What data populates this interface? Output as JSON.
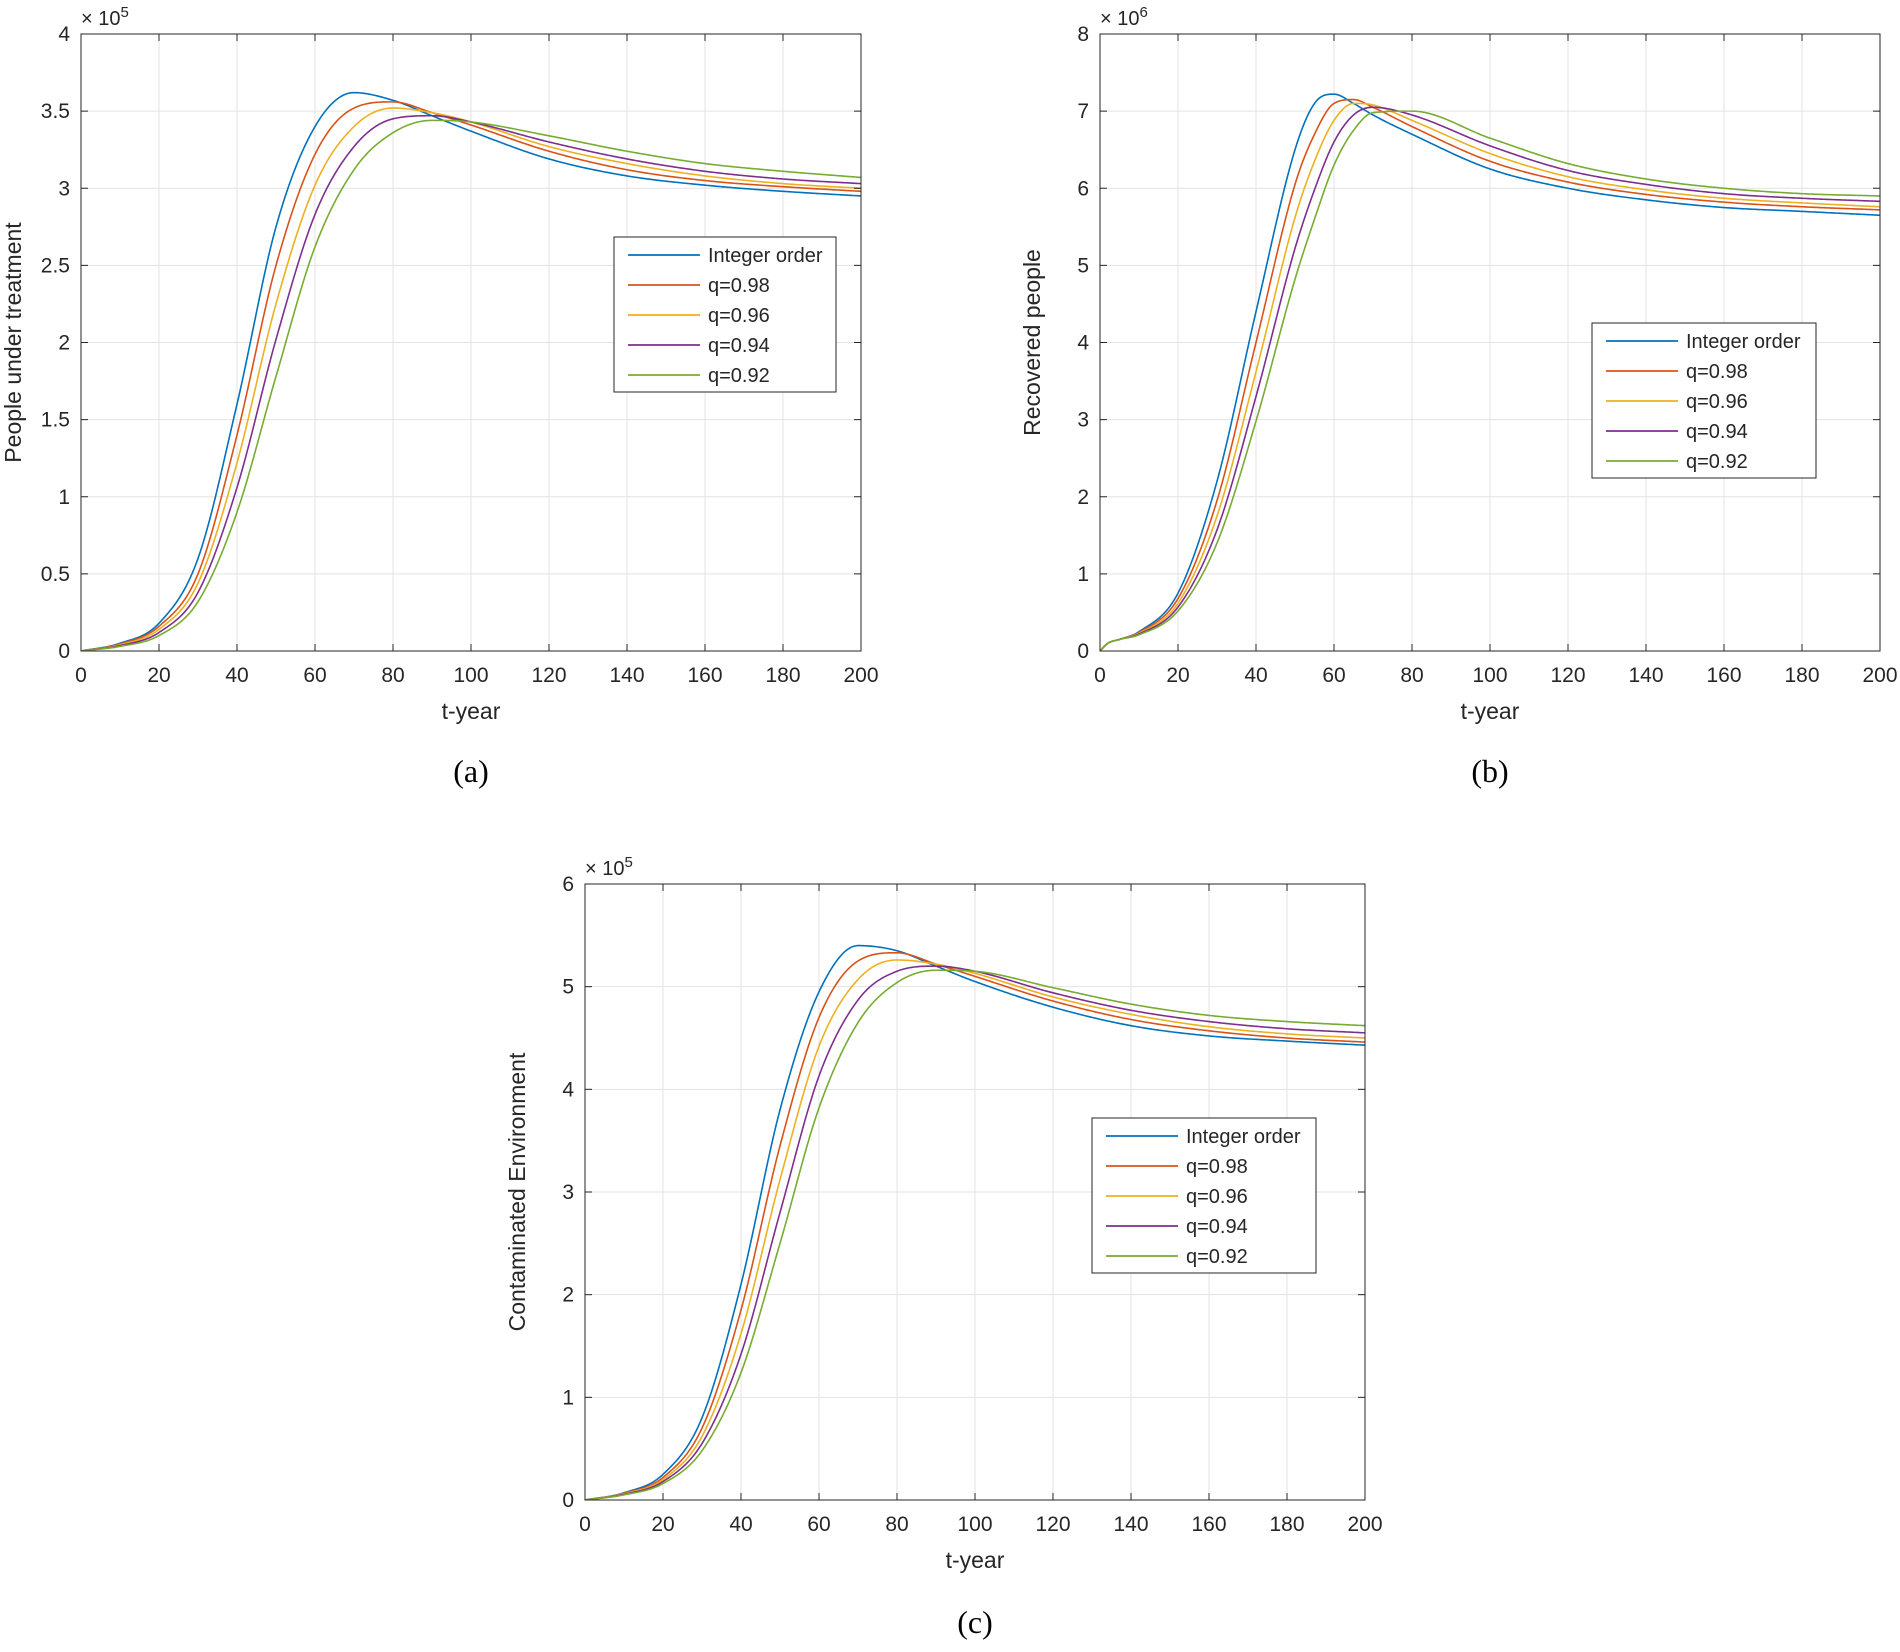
{
  "chart_data": [
    {
      "id": "a",
      "type": "line",
      "caption": "(a)",
      "title": "",
      "xlabel": "t-year",
      "ylabel": "People under treatment",
      "exponent": "5",
      "exponent_prefix": "× 10",
      "xlim": [
        0,
        200
      ],
      "ylim": [
        0,
        4
      ],
      "xticks": [
        0,
        20,
        40,
        60,
        80,
        100,
        120,
        140,
        160,
        180,
        200
      ],
      "yticks": [
        0,
        0.5,
        1,
        1.5,
        2,
        2.5,
        3,
        3.5,
        4
      ],
      "grid": true,
      "legend_position": "right-upper",
      "x": [
        0,
        10,
        20,
        30,
        40,
        50,
        60,
        70,
        80,
        90,
        100,
        120,
        140,
        160,
        180,
        200
      ],
      "series": [
        {
          "name": "Integer order",
          "color": "#0072BD",
          "values": [
            0,
            0.05,
            0.18,
            0.6,
            1.6,
            2.75,
            3.4,
            3.62,
            3.57,
            3.47,
            3.37,
            3.19,
            3.08,
            3.02,
            2.98,
            2.95
          ]
        },
        {
          "name": "q=0.98",
          "color": "#D95319",
          "values": [
            0,
            0.045,
            0.16,
            0.5,
            1.4,
            2.5,
            3.22,
            3.52,
            3.56,
            3.49,
            3.41,
            3.24,
            3.12,
            3.05,
            3.01,
            2.98
          ]
        },
        {
          "name": "q=0.96",
          "color": "#EDB120",
          "values": [
            0,
            0.04,
            0.14,
            0.44,
            1.22,
            2.25,
            3.02,
            3.4,
            3.52,
            3.49,
            3.43,
            3.27,
            3.16,
            3.08,
            3.03,
            3.0
          ]
        },
        {
          "name": "q=0.94",
          "color": "#7E2F8E",
          "values": [
            0,
            0.035,
            0.12,
            0.38,
            1.06,
            2.02,
            2.83,
            3.27,
            3.45,
            3.47,
            3.43,
            3.3,
            3.19,
            3.11,
            3.06,
            3.03
          ]
        },
        {
          "name": "q=0.92",
          "color": "#77AC30",
          "values": [
            0,
            0.03,
            0.1,
            0.32,
            0.9,
            1.78,
            2.62,
            3.12,
            3.36,
            3.44,
            3.43,
            3.34,
            3.24,
            3.16,
            3.11,
            3.07
          ]
        }
      ]
    },
    {
      "id": "b",
      "type": "line",
      "caption": "(b)",
      "title": "",
      "xlabel": "t-year",
      "ylabel": "Recovered people",
      "exponent": "6",
      "exponent_prefix": "× 10",
      "xlim": [
        0,
        200
      ],
      "ylim": [
        0,
        8
      ],
      "xticks": [
        0,
        20,
        40,
        60,
        80,
        100,
        120,
        140,
        160,
        180,
        200
      ],
      "yticks": [
        0,
        1,
        2,
        3,
        4,
        5,
        6,
        7,
        8
      ],
      "grid": true,
      "legend_position": "right-middle",
      "x": [
        0,
        2,
        5,
        10,
        20,
        30,
        40,
        50,
        55,
        60,
        65,
        70,
        80,
        100,
        120,
        140,
        160,
        180,
        200
      ],
      "series": [
        {
          "name": "Integer order",
          "color": "#0072BD",
          "values": [
            0,
            0.1,
            0.15,
            0.25,
            0.75,
            2.2,
            4.4,
            6.5,
            7.1,
            7.22,
            7.1,
            6.95,
            6.7,
            6.25,
            6.0,
            5.85,
            5.75,
            5.7,
            5.65
          ]
        },
        {
          "name": "q=0.98",
          "color": "#D95319",
          "values": [
            0,
            0.1,
            0.15,
            0.24,
            0.68,
            1.95,
            4.0,
            6.05,
            6.7,
            7.1,
            7.15,
            7.05,
            6.8,
            6.35,
            6.08,
            5.92,
            5.82,
            5.76,
            5.72
          ]
        },
        {
          "name": "q=0.96",
          "color": "#EDB120",
          "values": [
            0,
            0.1,
            0.15,
            0.23,
            0.62,
            1.75,
            3.62,
            5.62,
            6.35,
            6.88,
            7.1,
            7.08,
            6.88,
            6.45,
            6.15,
            5.98,
            5.87,
            5.81,
            5.76
          ]
        },
        {
          "name": "q=0.94",
          "color": "#7E2F8E",
          "values": [
            0,
            0.1,
            0.15,
            0.22,
            0.57,
            1.57,
            3.3,
            5.22,
            5.98,
            6.6,
            6.95,
            7.05,
            6.95,
            6.55,
            6.23,
            6.05,
            5.93,
            5.87,
            5.83
          ]
        },
        {
          "name": "q=0.92",
          "color": "#77AC30",
          "values": [
            0,
            0.1,
            0.15,
            0.21,
            0.52,
            1.4,
            2.98,
            4.82,
            5.6,
            6.3,
            6.75,
            6.98,
            7.0,
            6.65,
            6.32,
            6.12,
            6.0,
            5.93,
            5.9
          ]
        }
      ]
    },
    {
      "id": "c",
      "type": "line",
      "caption": "(c)",
      "title": "",
      "xlabel": "t-year",
      "ylabel": "Contaminated Environment",
      "exponent": "5",
      "exponent_prefix": "× 10",
      "xlim": [
        0,
        200
      ],
      "ylim": [
        0,
        6
      ],
      "xticks": [
        0,
        20,
        40,
        60,
        80,
        100,
        120,
        140,
        160,
        180,
        200
      ],
      "yticks": [
        0,
        1,
        2,
        3,
        4,
        5,
        6
      ],
      "grid": true,
      "legend_position": "right-middle",
      "x": [
        0,
        10,
        20,
        30,
        40,
        50,
        60,
        70,
        80,
        90,
        100,
        120,
        140,
        160,
        180,
        200
      ],
      "series": [
        {
          "name": "Integer order",
          "color": "#0072BD",
          "values": [
            0,
            0.07,
            0.25,
            0.8,
            2.1,
            3.8,
            4.95,
            5.4,
            5.35,
            5.2,
            5.05,
            4.8,
            4.62,
            4.52,
            4.47,
            4.43
          ]
        },
        {
          "name": "q=0.98",
          "color": "#D95319",
          "values": [
            0,
            0.065,
            0.22,
            0.7,
            1.85,
            3.45,
            4.7,
            5.25,
            5.33,
            5.22,
            5.1,
            4.86,
            4.68,
            4.57,
            4.5,
            4.46
          ]
        },
        {
          "name": "q=0.96",
          "color": "#EDB120",
          "values": [
            0,
            0.06,
            0.2,
            0.62,
            1.62,
            3.12,
            4.42,
            5.07,
            5.26,
            5.22,
            5.13,
            4.9,
            4.73,
            4.61,
            4.54,
            4.5
          ]
        },
        {
          "name": "q=0.94",
          "color": "#7E2F8E",
          "values": [
            0,
            0.055,
            0.18,
            0.55,
            1.42,
            2.8,
            4.13,
            4.87,
            5.15,
            5.2,
            5.15,
            4.94,
            4.77,
            4.66,
            4.59,
            4.55
          ]
        },
        {
          "name": "q=0.92",
          "color": "#77AC30",
          "values": [
            0,
            0.05,
            0.16,
            0.48,
            1.24,
            2.5,
            3.82,
            4.65,
            5.04,
            5.16,
            5.15,
            4.99,
            4.83,
            4.72,
            4.66,
            4.62
          ]
        }
      ]
    }
  ]
}
